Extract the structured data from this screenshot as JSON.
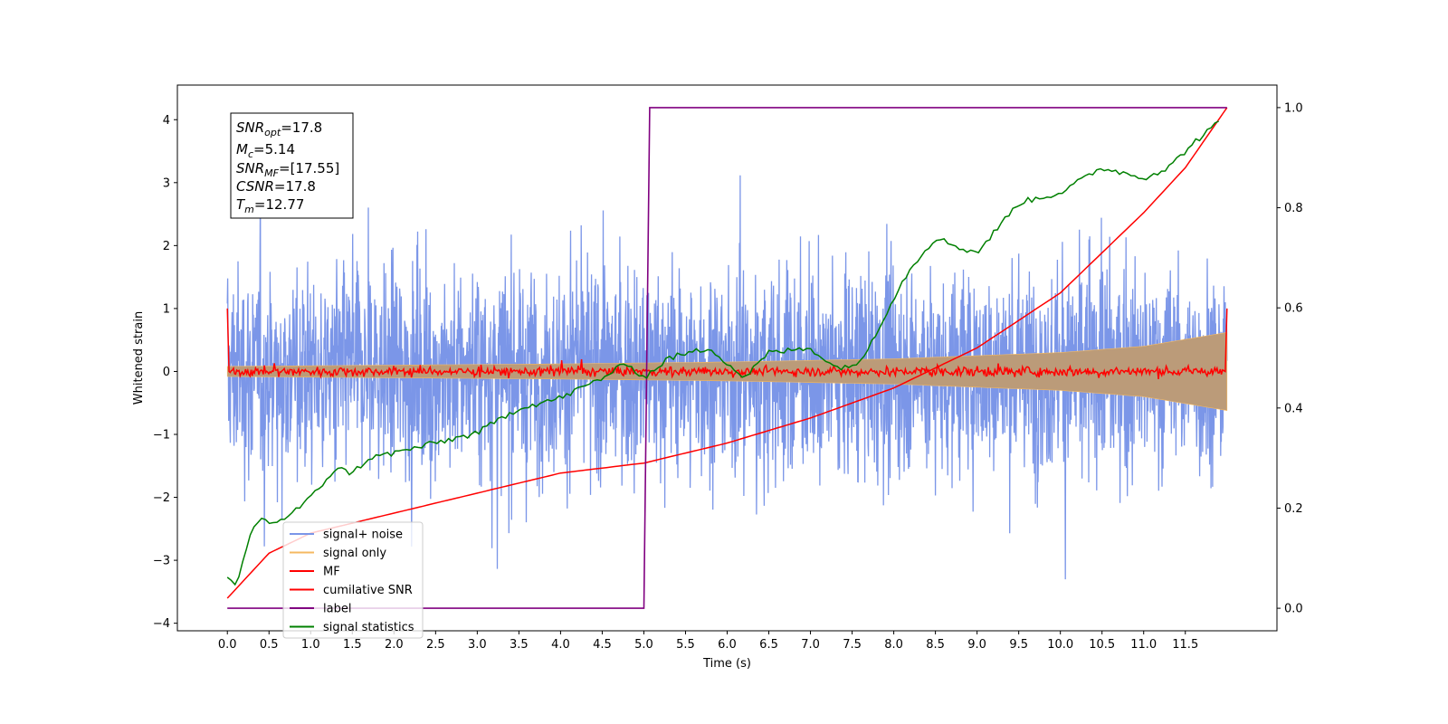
{
  "chart_data": {
    "type": "line",
    "xlabel": "Time (s)",
    "ylabel_left": "Whitened strain",
    "ylabel_right": "",
    "xlim": [
      -0.6,
      12.6
    ],
    "ylim_left": [
      -4.12,
      4.55
    ],
    "ylim_right": [
      -0.045,
      1.045
    ],
    "x_ticks": [
      "0.0",
      "0.5",
      "1.0",
      "1.5",
      "2.0",
      "2.5",
      "3.0",
      "3.5",
      "4.0",
      "4.5",
      "5.0",
      "5.5",
      "6.0",
      "6.5",
      "7.0",
      "7.5",
      "8.0",
      "8.5",
      "9.0",
      "9.5",
      "10.0",
      "10.5",
      "11.0",
      "11.5"
    ],
    "y_ticks_left": [
      "4",
      "3",
      "2",
      "1",
      "0",
      "−1",
      "−2",
      "−3",
      "−4"
    ],
    "y_ticks_right": [
      "1.0",
      "0.8",
      "0.6",
      "0.4",
      "0.2",
      "0.0"
    ],
    "grid": false,
    "legend_position": "lower-left",
    "annotations": [
      {
        "main": "SNR",
        "sub": "opt",
        "value": "=17.8"
      },
      {
        "main": "M",
        "sub": "c",
        "value": "=5.14"
      },
      {
        "main": "SNR",
        "sub": "MF",
        "value": "=[17.55]"
      },
      {
        "main": "CSNR",
        "sub": "",
        "value": "=17.8"
      },
      {
        "main": "T",
        "sub": "m",
        "value": "=12.77"
      }
    ],
    "series": [
      {
        "name": "signal+ noise",
        "axis": "left",
        "color": "#7b96e8",
        "x_range": [
          0.0,
          12.0
        ],
        "y_range_approx": [
          -3.7,
          4.2
        ]
      },
      {
        "name": "signal only",
        "axis": "left",
        "color": "#f5b961",
        "envelope_x": [
          0,
          2,
          4,
          6,
          8,
          10,
          11,
          12
        ],
        "envelope_y": [
          0.08,
          0.1,
          0.12,
          0.15,
          0.2,
          0.3,
          0.4,
          0.62
        ]
      },
      {
        "name": "MF",
        "axis": "left",
        "color": "#ff0000",
        "x_range": [
          0.0,
          12.0
        ],
        "endpoints_y": [
          1.0,
          1.0
        ],
        "baseline": 0.0
      },
      {
        "name": "cumilative SNR",
        "axis": "right",
        "color": "#ff0000",
        "x": [
          0.0,
          0.5,
          1.0,
          2.0,
          3.0,
          4.0,
          5.0,
          6.0,
          7.0,
          8.0,
          9.0,
          10.0,
          11.0,
          11.5,
          12.0
        ],
        "y": [
          0.02,
          0.11,
          0.15,
          0.19,
          0.23,
          0.27,
          0.29,
          0.33,
          0.38,
          0.44,
          0.52,
          0.63,
          0.79,
          0.88,
          1.0
        ]
      },
      {
        "name": "label",
        "axis": "right",
        "color": "#800080",
        "x": [
          0.0,
          5.0,
          5.07,
          12.0
        ],
        "y": [
          0.0,
          0.0,
          1.0,
          1.0
        ]
      },
      {
        "name": "signal statistics",
        "axis": "right",
        "color": "#008000",
        "x": [
          0.0,
          0.1,
          0.2,
          0.3,
          0.4,
          0.5,
          0.7,
          1.0,
          1.3,
          1.5,
          1.7,
          2.0,
          2.5,
          3.0,
          3.5,
          4.0,
          4.5,
          4.8,
          5.0,
          5.3,
          5.8,
          6.2,
          6.5,
          7.0,
          7.3,
          7.6,
          8.0,
          8.2,
          8.5,
          8.8,
          9.0,
          9.5,
          10.0,
          10.5,
          11.0,
          11.3,
          11.6,
          11.9
        ],
        "y": [
          0.06,
          0.04,
          0.1,
          0.16,
          0.18,
          0.17,
          0.18,
          0.22,
          0.28,
          0.27,
          0.3,
          0.31,
          0.33,
          0.35,
          0.4,
          0.42,
          0.46,
          0.49,
          0.46,
          0.5,
          0.52,
          0.46,
          0.51,
          0.52,
          0.48,
          0.49,
          0.62,
          0.68,
          0.74,
          0.72,
          0.71,
          0.81,
          0.83,
          0.88,
          0.86,
          0.88,
          0.93,
          0.97
        ]
      }
    ]
  }
}
